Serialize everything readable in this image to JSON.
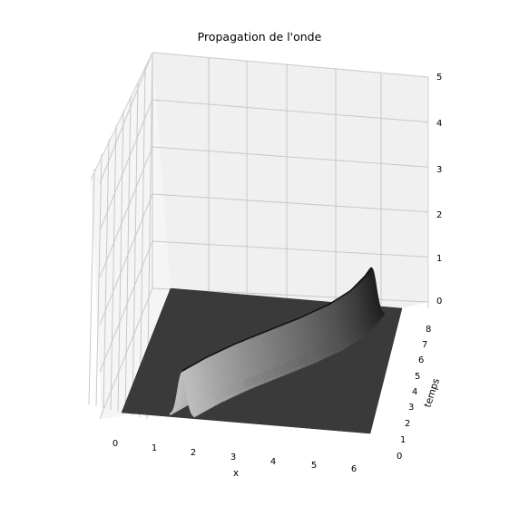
{
  "chart_data": {
    "type": "surface3d",
    "title": "Propagation de l'onde",
    "xlabel": "x",
    "ylabel": "temps",
    "zlabel": "",
    "x_ticks": [
      "0",
      "1",
      "2",
      "3",
      "4",
      "5",
      "6"
    ],
    "y_ticks": [
      "0",
      "1",
      "2",
      "3",
      "4",
      "5",
      "6",
      "7",
      "8"
    ],
    "z_ticks": [
      "0",
      "1",
      "2",
      "3",
      "4",
      "5"
    ],
    "xlim": [
      0,
      6.28
    ],
    "ylim": [
      0,
      8
    ],
    "zlim": [
      0,
      5
    ],
    "grid": true,
    "colormap": "gray",
    "surface": {
      "description_of_values": "gaussian pulse travelling along x as temps increases",
      "pulse_center_x_at_temps": [
        {
          "temps": 0.0,
          "x": 1.0
        },
        {
          "temps": 1.0,
          "x": 1.6
        },
        {
          "temps": 2.0,
          "x": 2.3
        },
        {
          "temps": 3.0,
          "x": 3.1
        },
        {
          "temps": 4.0,
          "x": 3.9
        },
        {
          "temps": 5.0,
          "x": 4.6
        },
        {
          "temps": 6.0,
          "x": 5.1
        },
        {
          "temps": 7.0,
          "x": 5.4
        },
        {
          "temps": 7.5,
          "x": 5.5
        }
      ],
      "peak_height": 1.0,
      "pulse_width": 0.12
    }
  },
  "colors": {
    "surface_dark": "#3a3a3a",
    "surface_light": "#e8e8e8",
    "pane": "#f0f0f0",
    "grid": "#c8c8c8"
  }
}
